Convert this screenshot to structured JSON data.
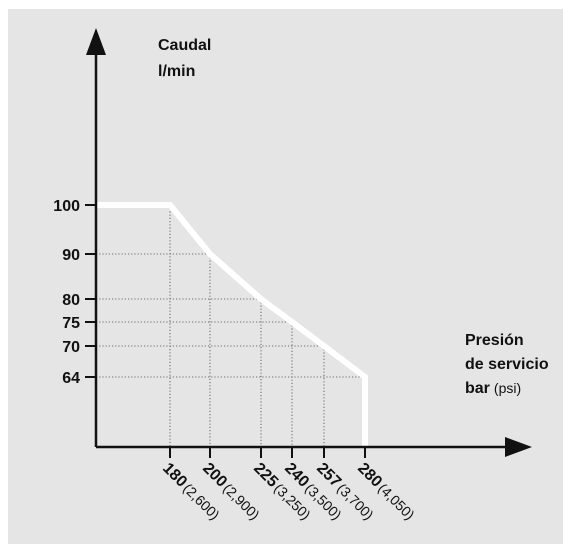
{
  "chart_data": {
    "type": "line",
    "ylabel": [
      "Caudal",
      "l/min"
    ],
    "xlabel": [
      "Presión",
      "de servicio",
      "bar",
      "(psi)"
    ],
    "x_ticks": [
      {
        "bar": 180,
        "psi": "(2,600)"
      },
      {
        "bar": 200,
        "psi": "(2,900)"
      },
      {
        "bar": 225,
        "psi": "(3,250)"
      },
      {
        "bar": 240,
        "psi": "(3,500)"
      },
      {
        "bar": 257,
        "psi": "(3,700)"
      },
      {
        "bar": 280,
        "psi": "(4,050)"
      }
    ],
    "y_ticks": [
      100,
      90,
      80,
      75,
      70,
      64
    ],
    "series": [
      {
        "color": "#ffffff",
        "points": [
          {
            "x": 140,
            "y": 100
          },
          {
            "x": 180,
            "y": 100
          },
          {
            "x": 200,
            "y": 90
          },
          {
            "x": 225,
            "y": 80
          },
          {
            "x": 240,
            "y": 75
          },
          {
            "x": 257,
            "y": 70
          },
          {
            "x": 280,
            "y": 64
          },
          {
            "x": 280,
            "y": 44
          }
        ]
      }
    ],
    "grid": "dotted guide lines from curve to axes"
  }
}
